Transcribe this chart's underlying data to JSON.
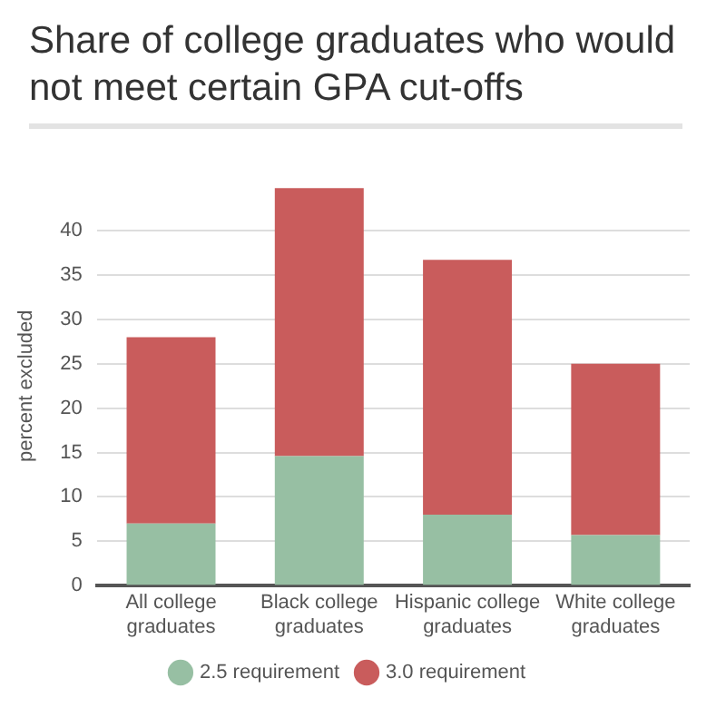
{
  "chart_data": {
    "type": "bar",
    "title": "Share of college graduates who would not meet certain GPA cut-offs",
    "ylabel": "percent excluded",
    "categories": [
      "All college graduates",
      "Black college graduates",
      "Hispanic college graduates",
      "White college graduates"
    ],
    "stacked": true,
    "series": [
      {
        "name": "2.5 requirement",
        "color": "#97bfa3",
        "values": [
          7,
          14.6,
          8,
          5.7
        ]
      },
      {
        "name": "3.0 requirement",
        "color": "#c95c5c",
        "values": [
          21,
          30.2,
          28.7,
          19.3
        ]
      }
    ],
    "ylim": [
      0,
      45
    ],
    "yticks": [
      0,
      5,
      10,
      15,
      20,
      25,
      30,
      35,
      40
    ],
    "grid": "y",
    "legend": "bottom"
  }
}
